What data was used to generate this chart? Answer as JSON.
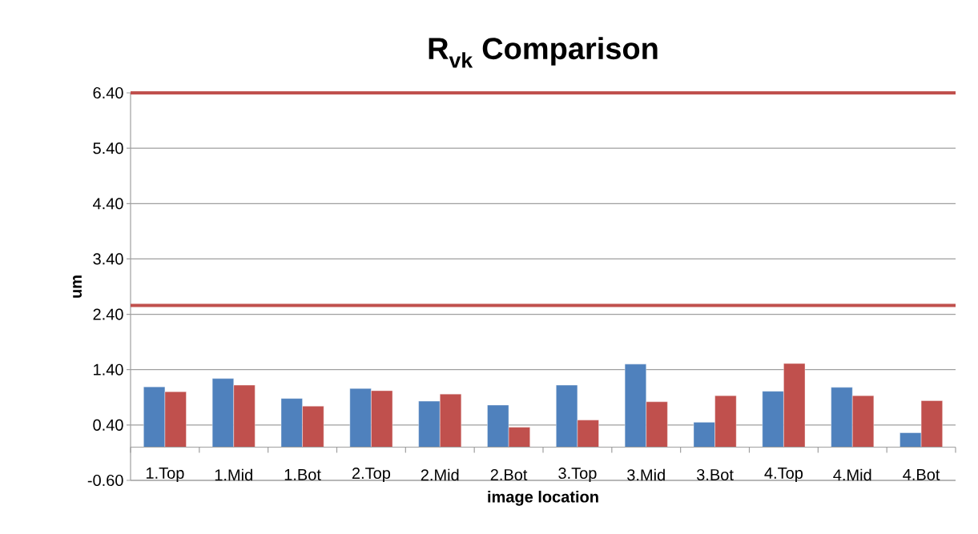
{
  "chart_data": {
    "type": "bar",
    "title": "R$_{vk}$ Comparison",
    "xlabel": "image location",
    "ylabel": "um",
    "categories": [
      "1.Top",
      "1.Mid",
      "1.Bot",
      "2.Top",
      "2.Mid",
      "2.Bot",
      "3.Top",
      "3.Mid",
      "3.Bot",
      "4.Top",
      "4.Mid",
      "4.Bot"
    ],
    "series": [
      {
        "color": "#4f81bd",
        "values": [
          1.09,
          1.24,
          0.88,
          1.06,
          0.83,
          0.76,
          1.12,
          1.5,
          0.45,
          1.01,
          1.08,
          0.26
        ]
      },
      {
        "color": "#c0504d",
        "values": [
          1.0,
          1.12,
          0.74,
          1.02,
          0.96,
          0.36,
          0.49,
          0.82,
          0.93,
          1.51,
          0.93,
          0.84
        ]
      }
    ],
    "ylim": [
      -0.6,
      6.4
    ],
    "yticks": [
      {
        "value": -0.6,
        "label": "-0.60"
      },
      {
        "value": 0.4,
        "label": "0.40"
      },
      {
        "value": 1.4,
        "label": "1.40"
      },
      {
        "value": 2.4,
        "label": "2.40"
      },
      {
        "value": 3.4,
        "label": "3.40"
      },
      {
        "value": 4.4,
        "label": "4.40"
      },
      {
        "value": 5.4,
        "label": "5.40"
      },
      {
        "value": 6.4,
        "label": "6.40"
      }
    ],
    "ref_lines": [
      {
        "axis": "y",
        "value": 6.4,
        "color": "#c0504d"
      },
      {
        "axis": "y",
        "value": 2.56,
        "color": "#c0504d"
      }
    ],
    "grid": "y"
  }
}
